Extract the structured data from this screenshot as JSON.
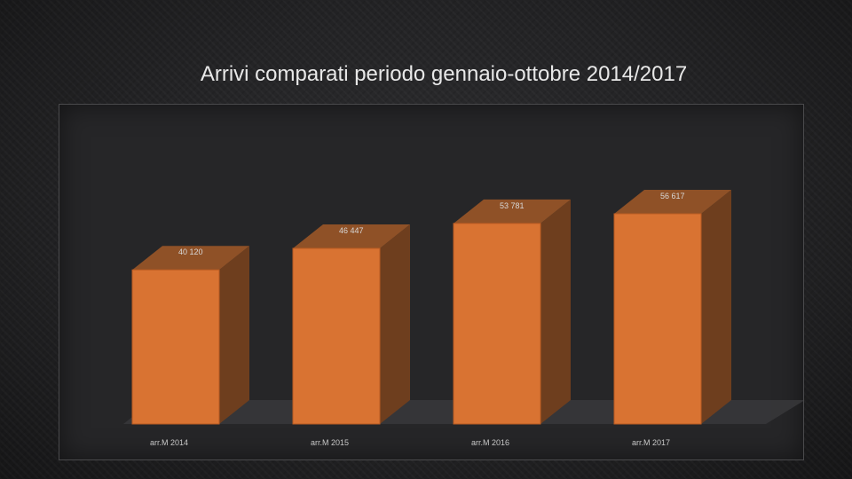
{
  "slide": {
    "title": "Arrivi comparati periodo gennaio-ottobre 2014/2017"
  },
  "colors": {
    "bar_front": "#d97332",
    "bar_side": "#6e3e1e",
    "bar_top": "#8f5127",
    "floor": "#3a3a3c"
  },
  "chart_data": {
    "type": "bar",
    "title": "",
    "xlabel": "",
    "ylabel": "",
    "categories": [
      "arr.M 2014",
      "arr.M 2015",
      "arr.M 2016",
      "arr.M 2017"
    ],
    "values": [
      40120,
      46447,
      53781,
      56617
    ],
    "data_labels": [
      "40 120",
      "46 447",
      "53 781",
      "56 617"
    ],
    "ylim": [
      0,
      60000
    ],
    "style": "3d",
    "grid": false,
    "legend": "none"
  }
}
